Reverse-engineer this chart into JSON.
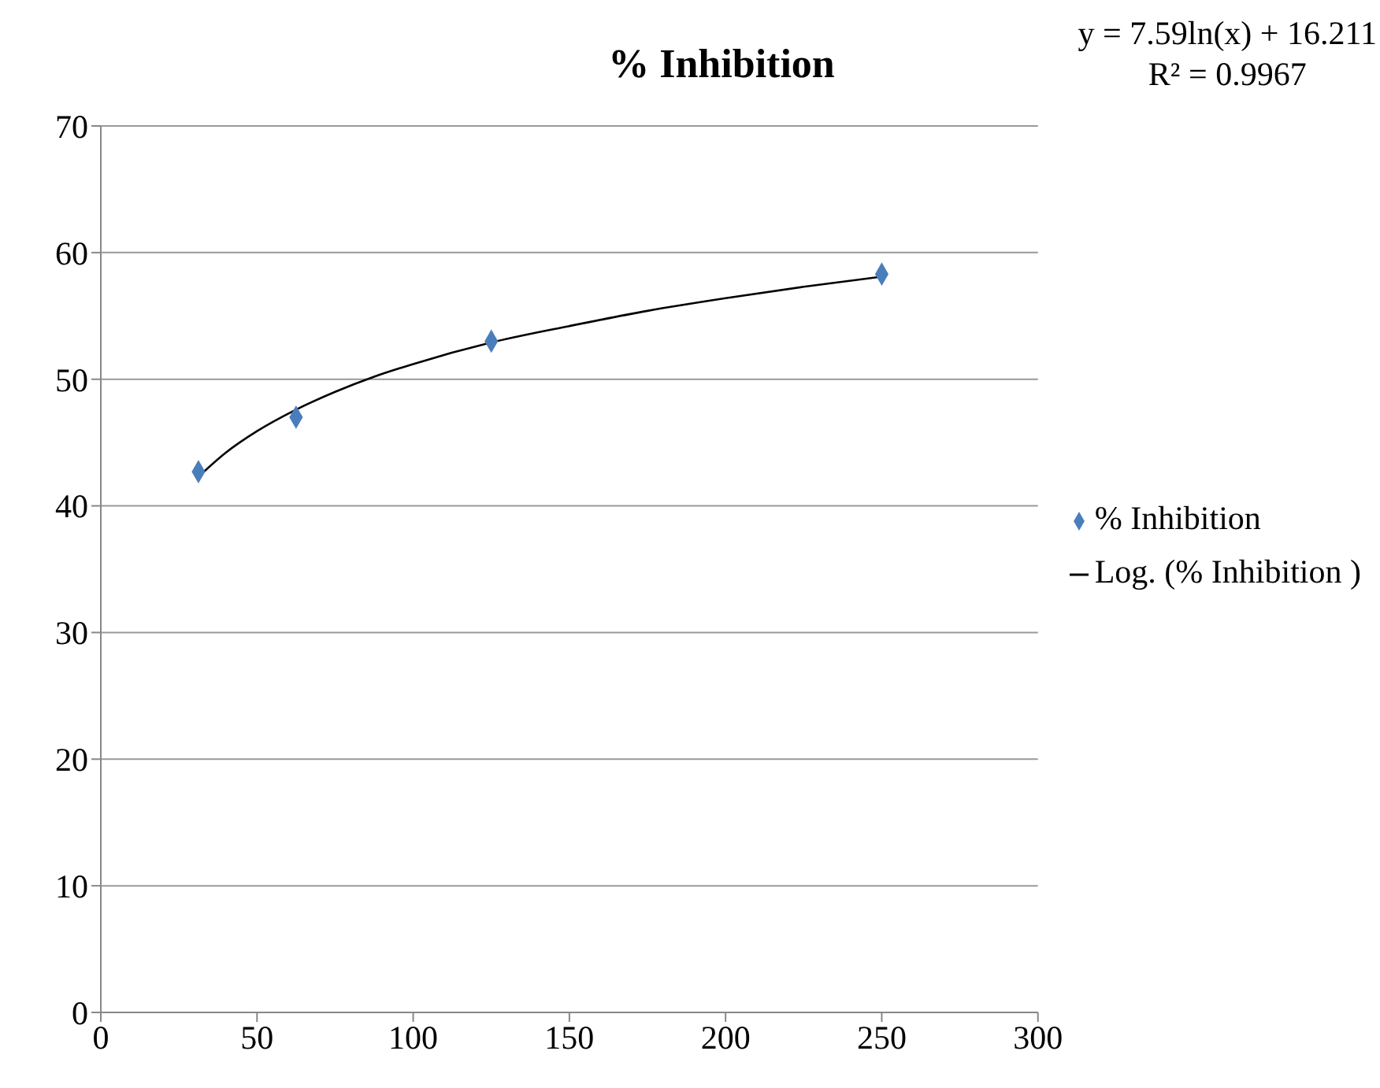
{
  "chart_data": {
    "type": "scatter",
    "title": "% Inhibition",
    "annotations": [
      "y = 7.59ln(x) + 16.211",
      "R² = 0.9967"
    ],
    "x": [
      31.25,
      62.5,
      125,
      250
    ],
    "series": [
      {
        "name": "% Inhibition",
        "color": "#4a7ebb",
        "marker": "diamond",
        "values": [
          42.7,
          47.0,
          53.0,
          58.3
        ]
      },
      {
        "name": "Log. (% Inhibition )",
        "type": "line",
        "color": "#000000",
        "marker": "none",
        "x": [
          31.25,
          40,
          50,
          62.5,
          75,
          87.5,
          100,
          125,
          150,
          175,
          200,
          225,
          250
        ],
        "values": [
          42.3,
          44.2,
          45.9,
          47.6,
          49.0,
          50.2,
          51.2,
          52.9,
          54.2,
          55.4,
          56.4,
          57.3,
          58.1
        ]
      }
    ],
    "xlim": [
      0,
      300
    ],
    "xticks": [
      0,
      50,
      100,
      150,
      200,
      250,
      300
    ],
    "ylim": [
      0,
      70
    ],
    "yticks": [
      0,
      10,
      20,
      30,
      40,
      50,
      60,
      70
    ],
    "grid": "y",
    "legend": "right"
  }
}
